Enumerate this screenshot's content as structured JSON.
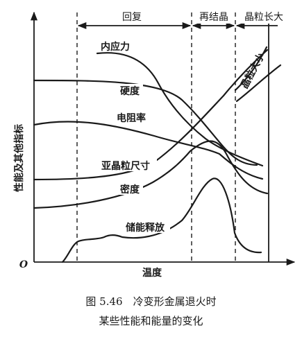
{
  "stages": {
    "recovery": "回复",
    "recrystallization": "再结晶",
    "grain_growth": "晶粒长大"
  },
  "axes": {
    "y_label": "性能及其他指标",
    "x_label": "温度",
    "origin": "O"
  },
  "curves": {
    "internal_stress": "内应力",
    "hardness": "硬度",
    "resistivity": "电阻率",
    "subgrain_size": "亚晶粒尺寸",
    "density": "密度",
    "stored_energy_release": "储能释放",
    "grain_size": "晶粒大小"
  },
  "caption": {
    "line1": "图 5.46　冷变形金属退火时",
    "line2": "某些性能和能量的变化"
  }
}
